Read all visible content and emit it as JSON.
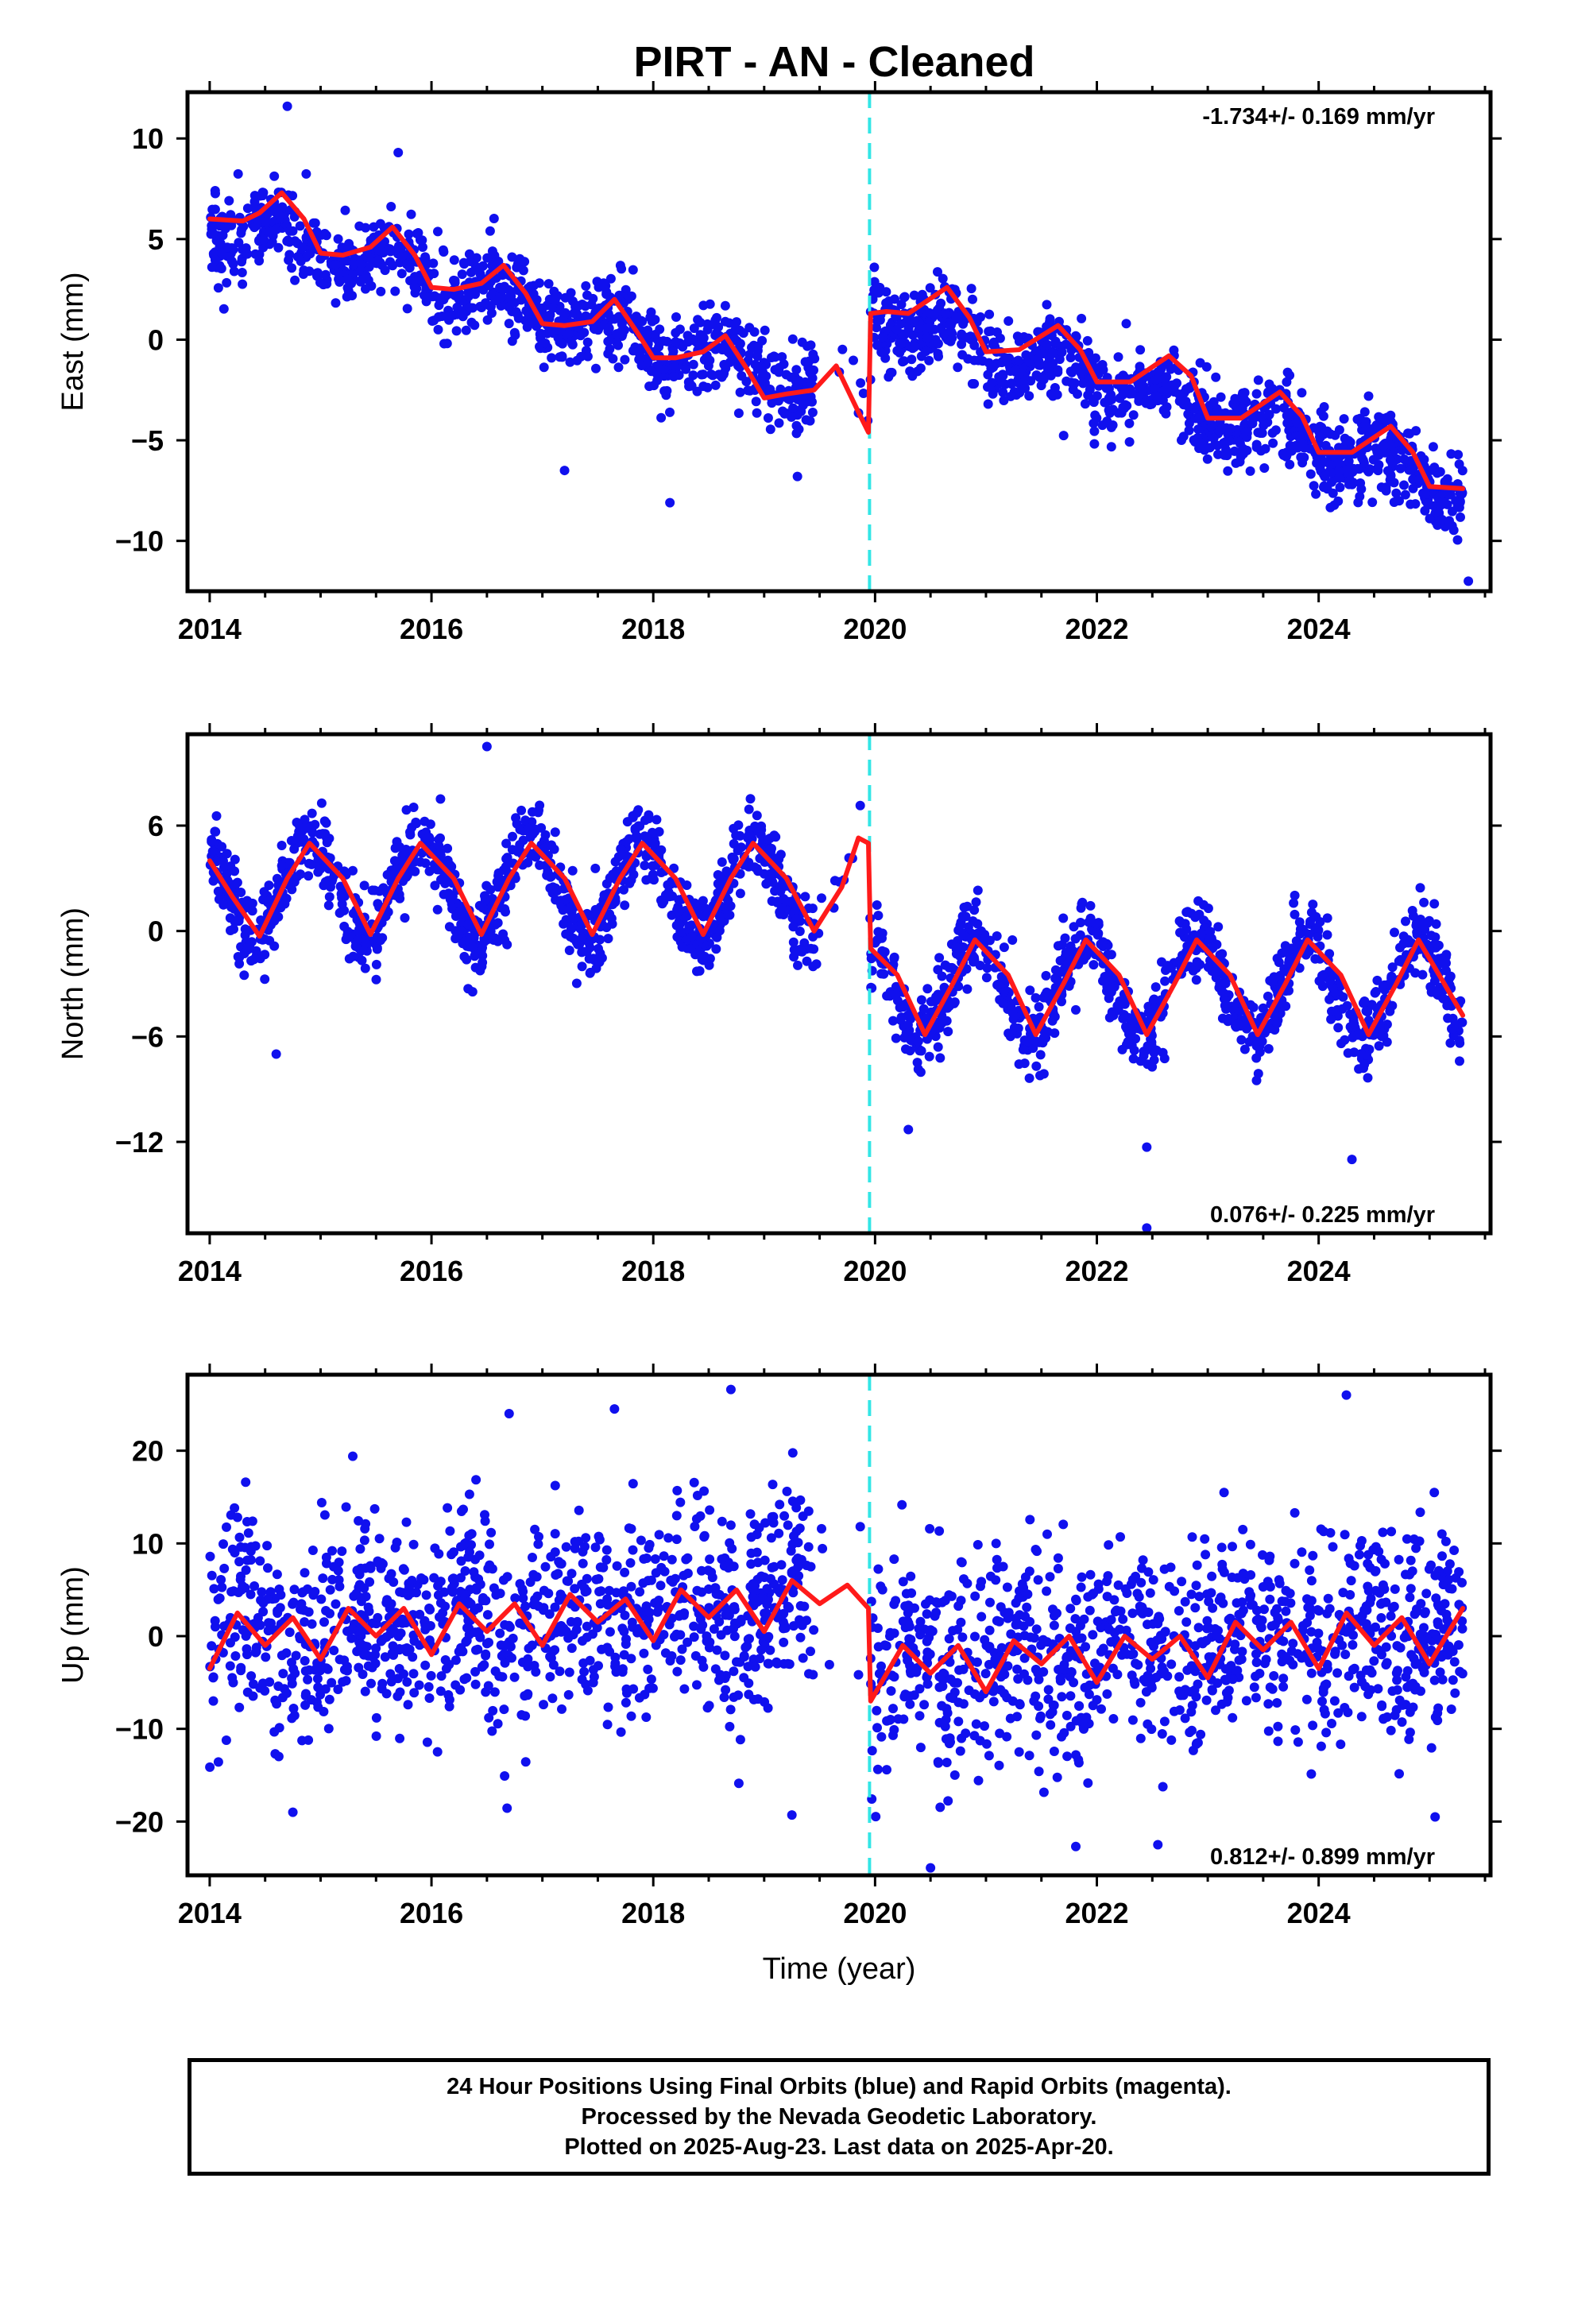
{
  "title": "PIRT  - AN - Cleaned",
  "colors": {
    "points": "#1010ee",
    "fit": "#ff1a1a",
    "offset_line": "#33e6e6",
    "frame": "#000000"
  },
  "footer": {
    "line1": "24 Hour Positions Using Final Orbits (blue) and Rapid Orbits (magenta).",
    "line2": "Processed by the Nevada Geodetic Laboratory.",
    "line3": "Plotted on 2025-Aug-23. Last data on 2025-Apr-20."
  },
  "chart_data": [
    {
      "type": "scatter",
      "panel": "east",
      "ylabel": "East (mm)",
      "xlabel": "",
      "xlim": [
        2013.8,
        2025.55
      ],
      "ylim": [
        -12.5,
        12.3
      ],
      "xticks": [
        2014,
        2016,
        2018,
        2020,
        2022,
        2024
      ],
      "xtick_labels": [
        "2014",
        "2016",
        "2018",
        "2020",
        "2022",
        "2024"
      ],
      "yticks": [
        10,
        5,
        0,
        -5,
        -10
      ],
      "ytick_labels": [
        "10",
        "5",
        "0",
        "−5",
        "−10"
      ],
      "rate_label": "-1.734+/- 0.169 mm/yr",
      "rate_position": "top-right",
      "offset_epoch": 2019.95,
      "series": [
        {
          "kind": "fit",
          "x": [
            2014.0,
            2014.3,
            2014.45,
            2014.65,
            2014.85,
            2015.0,
            2015.2,
            2015.45,
            2015.65,
            2015.85,
            2016.0,
            2016.2,
            2016.45,
            2016.65,
            2016.85,
            2017.0,
            2017.2,
            2017.45,
            2017.65,
            2017.85,
            2018.0,
            2018.2,
            2018.45,
            2018.65,
            2018.85,
            2019.0,
            2019.2,
            2019.45,
            2019.65,
            2019.85,
            2019.94,
            2019.96,
            2020.1,
            2020.3,
            2020.65,
            2020.85,
            2021.0,
            2021.3,
            2021.65,
            2021.85,
            2022.0,
            2022.3,
            2022.65,
            2022.85,
            2023.0,
            2023.3,
            2023.65,
            2023.85,
            2024.0,
            2024.3,
            2024.65,
            2024.85,
            2025.0,
            2025.3
          ],
          "y": [
            6.0,
            5.9,
            6.3,
            7.3,
            6.0,
            4.3,
            4.2,
            4.6,
            5.6,
            4.2,
            2.6,
            2.5,
            2.8,
            3.7,
            2.3,
            0.8,
            0.7,
            0.9,
            2.0,
            0.4,
            -0.9,
            -0.9,
            -0.6,
            0.2,
            -1.5,
            -2.9,
            -2.7,
            -2.5,
            -1.3,
            -3.6,
            -4.6,
            1.3,
            1.4,
            1.3,
            2.6,
            1.1,
            -0.6,
            -0.5,
            0.7,
            -0.5,
            -2.1,
            -2.1,
            -0.8,
            -1.8,
            -3.9,
            -3.9,
            -2.6,
            -3.8,
            -5.6,
            -5.6,
            -4.3,
            -5.6,
            -7.3,
            -7.4
          ]
        },
        {
          "kind": "points",
          "trend": [
            [
              2014.0,
              6.0
            ],
            [
              2019.94,
              -3.0
            ],
            [
              2019.96,
              1.3
            ],
            [
              2025.3,
              -7.3
            ]
          ],
          "annual_amplitude": 0.8,
          "scatter_sigma": 1.0,
          "density_per_year": 190,
          "outliers": [
            [
              2014.7,
              11.6
            ],
            [
              2017.2,
              -6.5
            ],
            [
              2018.15,
              -8.1
            ],
            [
              2025.35,
              -12.0
            ],
            [
              2015.7,
              9.3
            ],
            [
              2019.3,
              -6.8
            ]
          ]
        }
      ]
    },
    {
      "type": "scatter",
      "panel": "north",
      "ylabel": "North (mm)",
      "xlabel": "",
      "xlim": [
        2013.8,
        2025.55
      ],
      "ylim": [
        -17.2,
        11.2
      ],
      "xticks": [
        2014,
        2016,
        2018,
        2020,
        2022,
        2024
      ],
      "xtick_labels": [
        "2014",
        "2016",
        "2018",
        "2020",
        "2022",
        "2024"
      ],
      "yticks": [
        6,
        0,
        -6,
        -12
      ],
      "ytick_labels": [
        "6",
        "0",
        "−6",
        "−12"
      ],
      "rate_label": "0.076+/- 0.225 mm/yr",
      "rate_position": "bottom-right",
      "offset_epoch": 2019.95,
      "series": [
        {
          "kind": "fit",
          "x": [
            2014.0,
            2014.2,
            2014.45,
            2014.7,
            2014.9,
            2015.2,
            2015.45,
            2015.7,
            2015.9,
            2016.2,
            2016.45,
            2016.7,
            2016.9,
            2017.2,
            2017.45,
            2017.7,
            2017.9,
            2018.2,
            2018.45,
            2018.7,
            2018.9,
            2019.2,
            2019.45,
            2019.7,
            2019.85,
            2019.94,
            2019.96,
            2020.2,
            2020.45,
            2020.7,
            2020.9,
            2021.2,
            2021.45,
            2021.7,
            2021.9,
            2022.2,
            2022.45,
            2022.7,
            2022.9,
            2023.2,
            2023.45,
            2023.7,
            2023.9,
            2024.2,
            2024.45,
            2024.7,
            2024.9,
            2025.3
          ],
          "y": [
            4.0,
            2.0,
            -0.3,
            3.0,
            5.0,
            3.0,
            -0.2,
            3.0,
            5.0,
            3.0,
            -0.2,
            3.0,
            5.0,
            3.0,
            -0.2,
            3.0,
            5.0,
            3.0,
            -0.2,
            3.0,
            5.0,
            3.0,
            0.0,
            2.5,
            5.3,
            5.0,
            -1.0,
            -2.5,
            -5.9,
            -3.0,
            -0.5,
            -2.5,
            -5.9,
            -3.0,
            -0.5,
            -2.5,
            -5.9,
            -3.0,
            -0.5,
            -2.5,
            -5.9,
            -3.0,
            -0.5,
            -2.5,
            -5.9,
            -3.0,
            -0.5,
            -4.8
          ]
        },
        {
          "kind": "points",
          "trend": [
            [
              2014.0,
              2.4
            ],
            [
              2019.94,
              2.4
            ],
            [
              2019.96,
              -3.2
            ],
            [
              2025.3,
              -3.2
            ]
          ],
          "annual_amplitude": 2.8,
          "scatter_sigma": 1.1,
          "density_per_year": 190,
          "outliers": [
            [
              2016.5,
              10.5
            ],
            [
              2014.6,
              -7.0
            ],
            [
              2020.3,
              -11.3
            ],
            [
              2022.45,
              -12.3
            ],
            [
              2024.3,
              -13.0
            ],
            [
              2022.45,
              -16.9
            ]
          ]
        }
      ]
    },
    {
      "type": "scatter",
      "panel": "up",
      "ylabel": "Up (mm)",
      "xlabel": "Time (year)",
      "xlim": [
        2013.8,
        2025.55
      ],
      "ylim": [
        -25.8,
        28.2
      ],
      "xticks": [
        2014,
        2016,
        2018,
        2020,
        2022,
        2024
      ],
      "xtick_labels": [
        "2014",
        "2016",
        "2018",
        "2020",
        "2022",
        "2024"
      ],
      "yticks": [
        20,
        10,
        0,
        -10,
        -20
      ],
      "ytick_labels": [
        "20",
        "10",
        "0",
        "−10",
        "−20"
      ],
      "rate_label": "0.812+/- 0.899 mm/yr",
      "rate_position": "bottom-right",
      "offset_epoch": 2019.95,
      "series": [
        {
          "kind": "fit",
          "x": [
            2014.0,
            2014.25,
            2014.5,
            2014.75,
            2015.0,
            2015.25,
            2015.5,
            2015.75,
            2016.0,
            2016.25,
            2016.5,
            2016.75,
            2017.0,
            2017.25,
            2017.5,
            2017.75,
            2018.0,
            2018.25,
            2018.5,
            2018.75,
            2019.0,
            2019.25,
            2019.5,
            2019.75,
            2019.94,
            2019.96,
            2020.25,
            2020.5,
            2020.75,
            2021.0,
            2021.25,
            2021.5,
            2021.75,
            2022.0,
            2022.25,
            2022.5,
            2022.75,
            2023.0,
            2023.25,
            2023.5,
            2023.75,
            2024.0,
            2024.25,
            2024.5,
            2024.75,
            2025.0,
            2025.3
          ],
          "y": [
            -3.5,
            2.5,
            -1.0,
            2.0,
            -2.5,
            3.0,
            0.0,
            3.0,
            -2.0,
            3.5,
            0.5,
            3.5,
            -1.0,
            4.5,
            1.5,
            4.0,
            -0.5,
            5.0,
            2.0,
            5.0,
            0.5,
            6.0,
            3.5,
            5.5,
            3.0,
            -7.0,
            -1.0,
            -4.0,
            -1.0,
            -6.0,
            -0.5,
            -3.0,
            0.0,
            -5.0,
            0.0,
            -2.5,
            0.0,
            -4.5,
            1.5,
            -1.5,
            1.5,
            -3.5,
            2.5,
            -1.0,
            2.0,
            -3.0,
            3.0
          ]
        },
        {
          "kind": "points",
          "trend": [
            [
              2014.0,
              0.5
            ],
            [
              2019.94,
              3.5
            ],
            [
              2019.96,
              -3.5
            ],
            [
              2025.3,
              0.5
            ]
          ],
          "annual_amplitude": 2.0,
          "scatter_sigma": 5.6,
          "density_per_year": 190,
          "outliers": [
            [
              2018.7,
              26.6
            ],
            [
              2017.65,
              24.5
            ],
            [
              2016.7,
              24.0
            ],
            [
              2024.25,
              26.0
            ],
            [
              2020.5,
              -25.0
            ],
            [
              2014.75,
              -19.0
            ],
            [
              2019.25,
              -19.3
            ],
            [
              2022.55,
              -22.5
            ],
            [
              2025.05,
              -19.5
            ]
          ]
        }
      ]
    }
  ]
}
